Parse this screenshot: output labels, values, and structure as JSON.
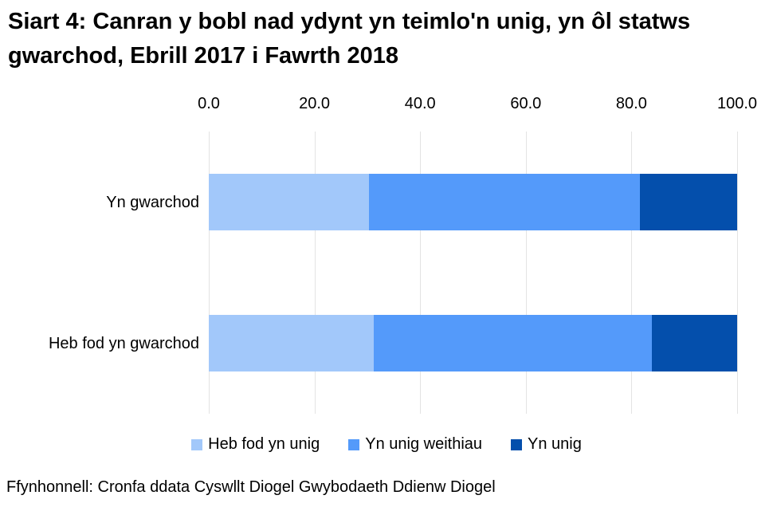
{
  "title": "Siart 4: Canran y bobl nad ydynt yn teimlo'n unig, yn ôl statws gwarchod, Ebrill 2017 i Fawrth 2018",
  "source": "Ffynhonnell: Cronfa ddata Cyswllt Diogel Gwybodaeth Ddienw Diogel",
  "colors": {
    "background": "#FFFFFF",
    "text": "#000000",
    "gridline": "#E3E3E3",
    "series_light_blue": "#A2C8FA",
    "series_medium_blue": "#549AFA",
    "series_dark_blue": "#044FAC"
  },
  "chart_data": {
    "type": "bar",
    "orientation": "horizontal",
    "stacked": true,
    "title": "Siart 4: Canran y bobl nad ydynt yn teimlo'n unig, yn ôl statws gwarchod, Ebrill 2017 i Fawrth 2018",
    "categories": [
      "Yn gwarchod",
      "Heb fod yn gwarchod"
    ],
    "series": [
      {
        "name": "Heb fod yn unig",
        "color": "#A2C8FA",
        "values": [
          30.3,
          31.2
        ]
      },
      {
        "name": "Yn unig weithiau",
        "color": "#549AFA",
        "values": [
          51.3,
          52.7
        ]
      },
      {
        "name": "Yn unig",
        "color": "#044FAC",
        "values": [
          18.4,
          16.1
        ]
      }
    ],
    "x_axis": {
      "position": "top",
      "min": 0,
      "max": 100,
      "tick_labels": [
        "0.0",
        "20.0",
        "40.0",
        "60.0",
        "80.0",
        "100.0"
      ]
    },
    "grid": true,
    "legend_position": "bottom"
  }
}
